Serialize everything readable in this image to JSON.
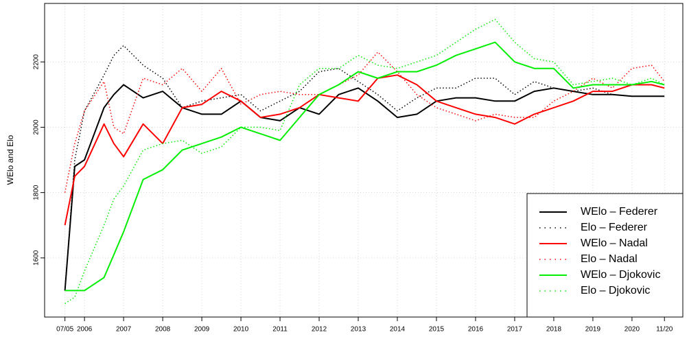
{
  "chart_data": {
    "type": "line",
    "y_label": "WElo and Elo",
    "x": [
      2005.5,
      2005.75,
      2006,
      2006.5,
      2006.75,
      2007,
      2007.5,
      2008,
      2008.5,
      2009,
      2009.5,
      2010,
      2010.5,
      2011,
      2011.5,
      2012,
      2012.5,
      2013,
      2013.5,
      2014,
      2014.5,
      2015,
      2015.5,
      2016,
      2016.5,
      2017,
      2017.5,
      2018,
      2018.5,
      2019,
      2019.5,
      2020,
      2020.5,
      2020.83
    ],
    "series": [
      {
        "name": "WElo – Federer",
        "color": "#000000",
        "dash": "solid",
        "values": [
          1500,
          1880,
          1900,
          2060,
          2100,
          2130,
          2090,
          2110,
          2060,
          2040,
          2040,
          2080,
          2030,
          2020,
          2060,
          2040,
          2100,
          2120,
          2080,
          2030,
          2040,
          2080,
          2090,
          2090,
          2080,
          2080,
          2110,
          2120,
          2110,
          2100,
          2100,
          2095,
          2095,
          2095
        ]
      },
      {
        "name": "Elo – Federer",
        "color": "#000000",
        "dash": "dotted",
        "values": [
          1500,
          1900,
          2050,
          2160,
          2220,
          2250,
          2190,
          2150,
          2060,
          2080,
          2090,
          2100,
          2050,
          2080,
          2110,
          2170,
          2180,
          2140,
          2100,
          2050,
          2090,
          2120,
          2120,
          2150,
          2150,
          2100,
          2140,
          2120,
          2110,
          2120,
          2100,
          2095,
          2095,
          2095
        ]
      },
      {
        "name": "WElo – Nadal",
        "color": "#ff0000",
        "dash": "solid",
        "values": [
          1700,
          1850,
          1880,
          2010,
          1950,
          1910,
          2010,
          1950,
          2060,
          2070,
          2110,
          2080,
          2030,
          2040,
          2060,
          2100,
          2090,
          2080,
          2150,
          2160,
          2130,
          2080,
          2060,
          2040,
          2030,
          2010,
          2040,
          2060,
          2080,
          2110,
          2110,
          2130,
          2130,
          2120
        ]
      },
      {
        "name": "Elo – Nadal",
        "color": "#ff0000",
        "dash": "dotted",
        "values": [
          1800,
          1950,
          2050,
          2140,
          2000,
          1980,
          2150,
          2130,
          2180,
          2110,
          2180,
          2070,
          2100,
          2110,
          2100,
          2100,
          2130,
          2160,
          2230,
          2170,
          2100,
          2060,
          2040,
          2020,
          2040,
          2030,
          2030,
          2080,
          2110,
          2150,
          2120,
          2180,
          2190,
          2140
        ]
      },
      {
        "name": "WElo – Djokovic",
        "color": "#00ee00",
        "dash": "solid",
        "values": [
          1500,
          1500,
          1500,
          1540,
          1610,
          1680,
          1840,
          1870,
          1930,
          1950,
          1970,
          2000,
          1980,
          1960,
          2030,
          2100,
          2130,
          2170,
          2150,
          2170,
          2170,
          2190,
          2220,
          2240,
          2260,
          2200,
          2180,
          2180,
          2120,
          2130,
          2130,
          2130,
          2140,
          2130
        ]
      },
      {
        "name": "Elo – Djokovic",
        "color": "#00ee00",
        "dash": "dotted",
        "values": [
          1460,
          1480,
          1560,
          1700,
          1780,
          1820,
          1930,
          1950,
          1960,
          1920,
          1940,
          2000,
          2000,
          1990,
          2130,
          2180,
          2180,
          2220,
          2190,
          2180,
          2200,
          2220,
          2260,
          2300,
          2330,
          2260,
          2210,
          2200,
          2130,
          2140,
          2150,
          2130,
          2150,
          2130
        ]
      }
    ],
    "xlim": [
      2004.98,
      2021.3
    ],
    "ylim": [
      1419,
      2379
    ],
    "xticks": [
      {
        "value": 2005.5,
        "label": "07/05"
      },
      2006,
      2007,
      2008,
      2009,
      2010,
      2011,
      2012,
      2013,
      2014,
      2015,
      2016,
      2017,
      2018,
      2019,
      2020,
      {
        "value": 2020.83,
        "label": "11/20"
      }
    ],
    "yticks": [
      1600,
      1800,
      2000,
      2200
    ],
    "grid": true,
    "legend": "bottomright"
  }
}
